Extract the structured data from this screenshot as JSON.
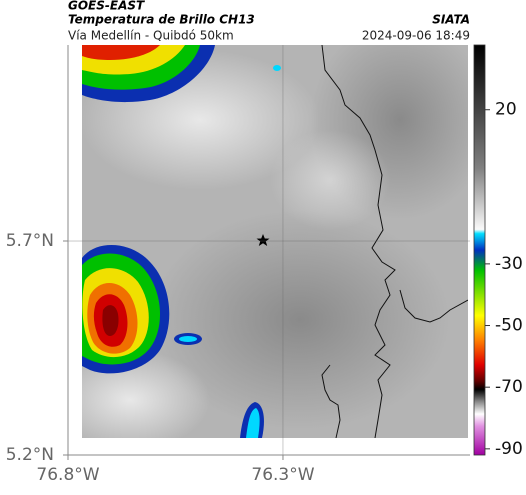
{
  "header": {
    "satellite": "GOES-EAST",
    "product": "Temperatura de Brillo CH13",
    "source": "SIATA",
    "route": "Vía Medellín - Quibdó 50km",
    "datetime": "2024-09-06 18:49"
  },
  "map": {
    "xlim": [
      -76.8,
      -75.865
    ],
    "ylim": [
      5.2,
      6.158
    ],
    "xticks": [
      {
        "value": -76.8,
        "label": "76.8°W"
      },
      {
        "value": -76.3,
        "label": "76.3°W"
      }
    ],
    "yticks": [
      {
        "value": 5.2,
        "label": "5.2°N"
      },
      {
        "value": 5.7,
        "label": "5.7°N"
      }
    ]
  },
  "colorbar": {
    "lim": [
      -92,
      41
    ],
    "ticks": [
      20,
      -30,
      -50,
      -70,
      -90
    ]
  }
}
